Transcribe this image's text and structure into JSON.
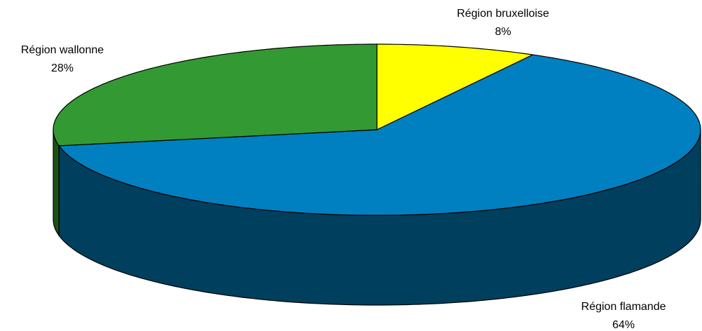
{
  "chart_data": {
    "type": "pie3d",
    "categories": [
      "Région bruxelloise",
      "Région flamande",
      "Région wallonne"
    ],
    "values": [
      8,
      64,
      28
    ],
    "value_labels": [
      "8%",
      "64%",
      "28%"
    ],
    "colors": [
      "#ffff00",
      "#0080c0",
      "#339933"
    ],
    "side_colors": [
      "#80801a",
      "#003f5e",
      "#1d5217"
    ]
  }
}
